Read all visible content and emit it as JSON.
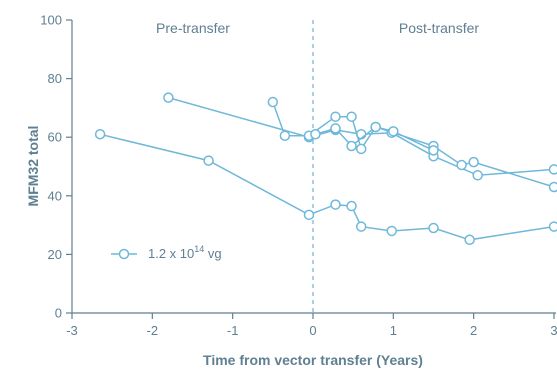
{
  "chart_data": {
    "type": "line",
    "xlabel": "Time from vector transfer (Years)",
    "ylabel": "MFM32 total",
    "xlim": [
      -3,
      3
    ],
    "ylim": [
      0,
      100
    ],
    "xticks": [
      -3,
      -2,
      -1,
      0,
      1,
      2,
      3
    ],
    "yticks": [
      0,
      20,
      40,
      60,
      80,
      100
    ],
    "annotations": [
      {
        "text": "Pre-transfer",
        "x": -1.5,
        "y": 97
      },
      {
        "text": "Post-transfer",
        "x": 1.5,
        "y": 97
      }
    ],
    "vertical_reference_line": {
      "x": 0,
      "style": "dashed"
    },
    "legend": {
      "label": "1.2 x 10",
      "superscript": "14",
      "unit": " vg",
      "position": "lower-left"
    },
    "series": [
      {
        "x": [
          -2.65,
          -1.3,
          -0.05,
          0.28,
          0.48,
          0.6,
          0.98,
          1.5,
          1.95,
          3.0
        ],
        "y": [
          61,
          52,
          33.5,
          37,
          36.5,
          29.5,
          28,
          29,
          25,
          29.5
        ]
      },
      {
        "x": [
          -1.8,
          -0.05,
          0.28,
          0.6,
          0.98,
          1.5,
          2.05,
          3.0
        ],
        "y": [
          73.5,
          60,
          62.5,
          61,
          61.5,
          53.5,
          47,
          49
        ]
      },
      {
        "x": [
          -0.5,
          -0.35,
          -0.05,
          0.28,
          0.48,
          0.6,
          0.78,
          1.5,
          1.85,
          2.0,
          3.0
        ],
        "y": [
          72,
          60.5,
          60.5,
          67,
          67,
          56,
          63.5,
          57,
          50.5,
          51.5,
          43
        ]
      },
      {
        "x": [
          0.03,
          0.28,
          0.48,
          0.78,
          1.0,
          1.5
        ],
        "y": [
          61,
          63,
          57,
          63.5,
          62,
          55.5
        ]
      }
    ]
  },
  "colors": {
    "series": "#6fb8d9",
    "axis": "#5f7f92",
    "refline": "#8fc4dc"
  }
}
